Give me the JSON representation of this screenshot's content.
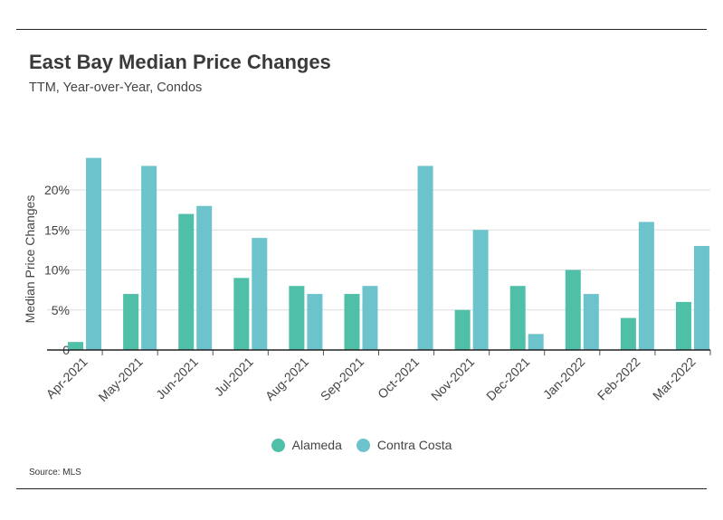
{
  "header": {
    "title": "East Bay Median Price Changes",
    "subtitle": "TTM, Year-over-Year, Condos"
  },
  "footer": {
    "source": "Source:  MLS"
  },
  "colors": {
    "alameda": "#4fbfa8",
    "contra_costa": "#6cc3cc",
    "grid": "#dddddd",
    "axis": "#222222"
  },
  "chart_data": {
    "type": "bar",
    "categories": [
      "Apr-2021",
      "May-2021",
      "Jun-2021",
      "Jul-2021",
      "Aug-2021",
      "Sep-2021",
      "Oct-2021",
      "Nov-2021",
      "Dec-2021",
      "Jan-2022",
      "Feb-2022",
      "Mar-2022"
    ],
    "series": [
      {
        "name": "Alameda",
        "values": [
          1,
          7,
          17,
          9,
          8,
          7,
          0,
          5,
          8,
          10,
          4,
          6
        ]
      },
      {
        "name": "Contra Costa",
        "values": [
          24,
          23,
          18,
          14,
          7,
          8,
          23,
          15,
          2,
          7,
          16,
          13
        ]
      }
    ],
    "ylabel": "Median Price Changes",
    "yticks": [
      0,
      5,
      10,
      15,
      20
    ],
    "ytick_labels": [
      "0",
      "5%",
      "10%",
      "15%",
      "20%"
    ],
    "ylim": [
      0,
      24
    ],
    "grid": true,
    "legend": "bottom-center"
  }
}
